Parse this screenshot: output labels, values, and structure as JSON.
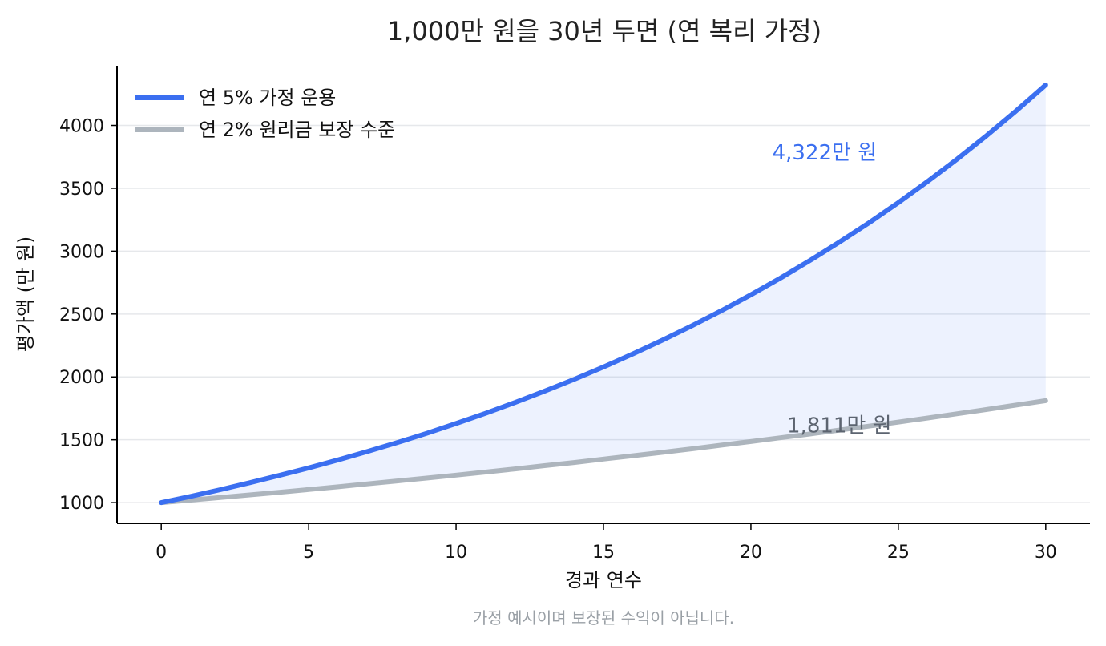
{
  "chart_data": {
    "type": "line",
    "title": "1,000만 원을 30년 두면 (연 복리 가정)",
    "xlabel": "경과 연수",
    "ylabel": "평가액 (만 원)",
    "xlim": [
      -1.5,
      31.5
    ],
    "ylim": [
      835,
      4475
    ],
    "x_ticks": [
      0,
      5,
      10,
      15,
      20,
      25,
      30
    ],
    "y_ticks": [
      1000,
      1500,
      2000,
      2500,
      3000,
      3500,
      4000
    ],
    "grid": "horizontal",
    "legend_position": "top-left",
    "fill_between": true,
    "series": [
      {
        "name": "연 5% 가정 운용",
        "color": "#3b6ff0",
        "x": [
          0,
          1,
          2,
          3,
          4,
          5,
          6,
          7,
          8,
          9,
          10,
          11,
          12,
          13,
          14,
          15,
          16,
          17,
          18,
          19,
          20,
          21,
          22,
          23,
          24,
          25,
          26,
          27,
          28,
          29,
          30
        ],
        "values": [
          1000,
          1050,
          1103,
          1158,
          1216,
          1276,
          1340,
          1407,
          1477,
          1551,
          1629,
          1710,
          1796,
          1886,
          1980,
          2079,
          2183,
          2292,
          2407,
          2527,
          2653,
          2786,
          2925,
          3072,
          3225,
          3386,
          3556,
          3733,
          3920,
          4116,
          4322
        ]
      },
      {
        "name": "연 2% 원리금 보장 수준",
        "color": "#adb5bd",
        "x": [
          0,
          1,
          2,
          3,
          4,
          5,
          6,
          7,
          8,
          9,
          10,
          11,
          12,
          13,
          14,
          15,
          16,
          17,
          18,
          19,
          20,
          21,
          22,
          23,
          24,
          25,
          26,
          27,
          28,
          29,
          30
        ],
        "values": [
          1000,
          1020,
          1040,
          1061,
          1082,
          1104,
          1126,
          1149,
          1172,
          1195,
          1219,
          1243,
          1268,
          1294,
          1319,
          1346,
          1373,
          1400,
          1428,
          1457,
          1486,
          1516,
          1546,
          1577,
          1608,
          1641,
          1673,
          1707,
          1741,
          1776,
          1811
        ]
      }
    ],
    "annotations": [
      {
        "text": "4,322만 원",
        "color": "#3b6ff0",
        "x": 22.5,
        "y": 3730
      },
      {
        "text": "1,811만 원",
        "color": "#5c6470",
        "x": 23.0,
        "y": 1560
      }
    ],
    "footnote": "가정 예시이며 보장된 수익이 아닙니다."
  }
}
